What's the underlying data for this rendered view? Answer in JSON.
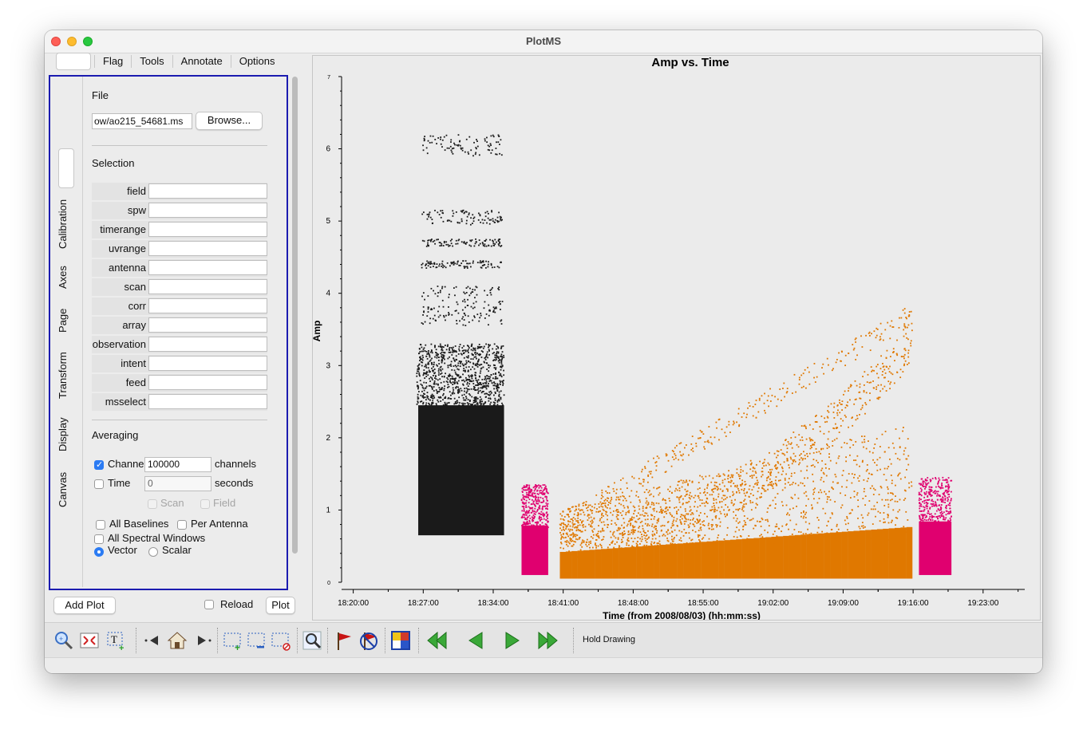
{
  "window": {
    "title": "PlotMS"
  },
  "tabs": [
    "",
    "Flag",
    "Tools",
    "Annotate",
    "Options"
  ],
  "vertical_tabs": [
    "",
    "Calibration",
    "Axes",
    "Page",
    "Transform",
    "Display",
    "Canvas"
  ],
  "data_tab": {
    "file_label": "File",
    "file_value": "ow/ao215_54681.ms",
    "browse_label": "Browse...",
    "selection_label": "Selection",
    "selection_fields": [
      {
        "label": "field",
        "value": ""
      },
      {
        "label": "spw",
        "value": ""
      },
      {
        "label": "timerange",
        "value": ""
      },
      {
        "label": "uvrange",
        "value": ""
      },
      {
        "label": "antenna",
        "value": ""
      },
      {
        "label": "scan",
        "value": ""
      },
      {
        "label": "corr",
        "value": ""
      },
      {
        "label": "array",
        "value": ""
      },
      {
        "label": "observation",
        "value": ""
      },
      {
        "label": "intent",
        "value": ""
      },
      {
        "label": "feed",
        "value": ""
      },
      {
        "label": "msselect",
        "value": ""
      }
    ],
    "averaging_label": "Averaging",
    "channel": {
      "label": "Channel",
      "checked": true,
      "value": "100000",
      "unit": "channels"
    },
    "time": {
      "label": "Time",
      "checked": false,
      "value": "0",
      "unit": "seconds"
    },
    "scan_label": "Scan",
    "field_label": "Field",
    "all_baselines_label": "All Baselines",
    "per_antenna_label": "Per Antenna",
    "all_spw_label": "All Spectral Windows",
    "vector_label": "Vector",
    "scalar_label": "Scalar"
  },
  "bottom_buttons": {
    "add_plot": "Add Plot",
    "reload": "Reload",
    "plot": "Plot"
  },
  "toolbar": {
    "hold_drawing": "Hold Drawing"
  },
  "colors": {
    "series_black": "#1a1a1a",
    "series_magenta": "#e0006f",
    "series_orange": "#e07800",
    "pane_border": "#1b1bb0"
  },
  "chart_data": {
    "type": "scatter",
    "title": "Amp vs. Time",
    "xlabel": "Time (from 2008/08/03) (hh:mm:ss)",
    "ylabel": "Amp",
    "x_ticks": [
      "18:20:00",
      "18:27:00",
      "18:34:00",
      "18:41:00",
      "18:48:00",
      "18:55:00",
      "19:02:00",
      "19:09:00",
      "19:16:00",
      "19:23:00"
    ],
    "y_ticks": [
      "0",
      "1",
      "2",
      "3",
      "4",
      "5",
      "6",
      "7"
    ],
    "xlim": [
      "18:18:50",
      "19:27:10"
    ],
    "ylim": [
      0,
      7
    ],
    "series": [
      {
        "color": "#1a1a1a",
        "x_range": [
          "18:26:20",
          "18:35:05"
        ],
        "dense_y": [
          0.65,
          3.3
        ],
        "bands": [
          3.3,
          3.85,
          4.4,
          4.7,
          5.1,
          6.1
        ]
      },
      {
        "color": "#e0006f",
        "x_range": [
          "18:36:50",
          "18:39:30"
        ],
        "y_range": [
          0.1,
          1.35
        ]
      },
      {
        "color": "#e07800",
        "x_range": [
          "18:40:40",
          "19:15:55"
        ],
        "y_start": [
          0.05,
          0.8
        ],
        "y_end": [
          0.05,
          3.9
        ]
      },
      {
        "color": "#e0006f",
        "x_range": [
          "19:16:35",
          "19:19:50"
        ],
        "y_range": [
          0.1,
          1.45
        ]
      }
    ]
  }
}
